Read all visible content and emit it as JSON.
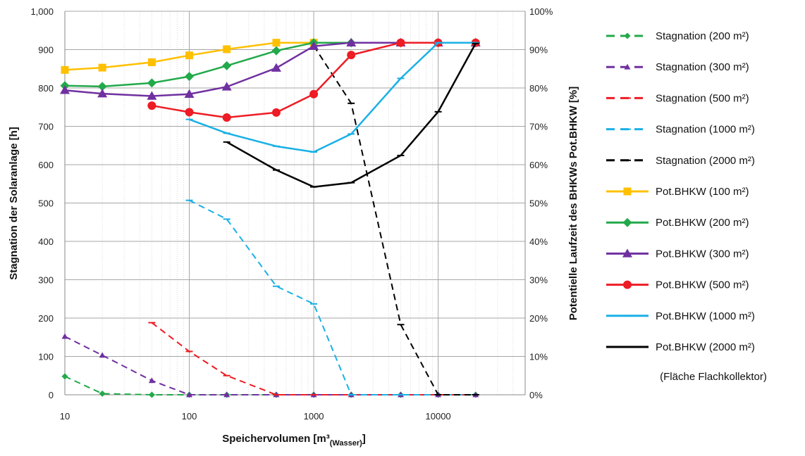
{
  "chart_data": {
    "type": "line",
    "xlabel": "Speichervolumen [m³",
    "xlabel_sub": "(Wasser)",
    "xlabel_close": "]",
    "ylabel_left": "Stagnation der Solaranlage [h]",
    "ylabel_right": "Potentielle Laufzeit des BHKWs Pot.BHKW  [%]",
    "x_scale": "log",
    "xlim": [
      10,
      50000
    ],
    "x_ticks": [
      10,
      100,
      1000,
      10000
    ],
    "x_tick_labels": [
      "10",
      "100",
      "1000",
      "10000"
    ],
    "y_left_lim": [
      0,
      1000
    ],
    "y_left_ticks": [
      0,
      100,
      200,
      300,
      400,
      500,
      600,
      700,
      800,
      900,
      1000
    ],
    "y_left_tick_labels": [
      "0",
      "100",
      "200",
      "300",
      "400",
      "500",
      "600",
      "700",
      "800",
      "900",
      "1,000"
    ],
    "y_right_lim": [
      0,
      100
    ],
    "y_right_ticks": [
      0,
      10,
      20,
      30,
      40,
      50,
      60,
      70,
      80,
      90,
      100
    ],
    "y_right_tick_labels": [
      "0%",
      "10%",
      "20%",
      "30%",
      "40%",
      "50%",
      "60%",
      "70%",
      "80%",
      "90%",
      "100%"
    ],
    "grid": true,
    "legend_position": "right",
    "legend_note": "(Fläche Flachkollektor)",
    "series": [
      {
        "name": "Stagnation (200 m²)",
        "axis": "left",
        "style": "dashed",
        "marker": "diamond",
        "color": "#22a94a",
        "x": [
          10,
          20,
          50,
          100,
          200,
          500,
          1000,
          2000,
          5000,
          10000,
          20000
        ],
        "y": [
          48,
          3,
          0,
          0,
          0,
          0,
          0,
          0,
          0,
          0,
          0
        ]
      },
      {
        "name": "Stagnation (300 m²)",
        "axis": "left",
        "style": "dashed",
        "marker": "triangle",
        "color": "#7030a0",
        "x": [
          10,
          20,
          50,
          100,
          200,
          500,
          1000,
          2000,
          5000,
          10000,
          20000
        ],
        "y": [
          152,
          103,
          37,
          0,
          0,
          0,
          0,
          0,
          0,
          0,
          0
        ]
      },
      {
        "name": "Stagnation (500 m²)",
        "axis": "left",
        "style": "dashed",
        "marker": "dash",
        "color": "#ee1c24",
        "x": [
          50,
          100,
          200,
          500,
          1000,
          2000,
          5000,
          10000,
          20000
        ],
        "y": [
          188,
          113,
          50,
          0,
          0,
          0,
          0,
          0,
          0
        ]
      },
      {
        "name": "Stagnation (1000 m²)",
        "axis": "left",
        "style": "dashed",
        "marker": "dash",
        "color": "#1ab0e6",
        "x": [
          100,
          200,
          500,
          1000,
          2000,
          5000,
          10000,
          20000
        ],
        "y": [
          507,
          458,
          283,
          237,
          0,
          0,
          0,
          0
        ]
      },
      {
        "name": "Stagnation (2000 m²)",
        "axis": "left",
        "style": "dashed",
        "marker": "dash",
        "color": "#000000",
        "x": [
          1000,
          2000,
          5000,
          10000,
          20000
        ],
        "y": [
          910,
          760,
          183,
          0,
          0
        ]
      },
      {
        "name": "Pot.BHKW (100 m²)",
        "axis": "right",
        "style": "solid",
        "marker": "square",
        "color": "#ffc000",
        "x": [
          10,
          20,
          50,
          100,
          200,
          500,
          1000
        ],
        "y": [
          84.7,
          85.3,
          86.7,
          88.5,
          90.1,
          91.8,
          91.8
        ]
      },
      {
        "name": "Pot.BHKW (200 m²)",
        "axis": "right",
        "style": "solid",
        "marker": "diamond",
        "color": "#22a94a",
        "x": [
          10,
          20,
          50,
          100,
          200,
          500,
          1000,
          2000,
          5000,
          10000,
          20000
        ],
        "y": [
          80.6,
          80.4,
          81.3,
          83.0,
          85.8,
          89.7,
          91.8,
          91.8,
          91.8,
          91.8,
          91.8
        ]
      },
      {
        "name": "Pot.BHKW (300 m²)",
        "axis": "right",
        "style": "solid",
        "marker": "triangle",
        "color": "#7030a0",
        "x": [
          10,
          20,
          50,
          100,
          200,
          500,
          1000,
          2000,
          5000,
          10000,
          20000
        ],
        "y": [
          79.4,
          78.5,
          77.9,
          78.4,
          80.3,
          85.2,
          90.9,
          91.8,
          91.8,
          91.8,
          91.8
        ]
      },
      {
        "name": "Pot.BHKW (500 m²)",
        "axis": "right",
        "style": "solid",
        "marker": "circle",
        "color": "#ee1c24",
        "x": [
          50,
          100,
          200,
          500,
          1000,
          2000,
          5000,
          10000,
          20000
        ],
        "y": [
          75.4,
          73.7,
          72.3,
          73.6,
          78.4,
          88.6,
          91.8,
          91.8,
          91.8
        ]
      },
      {
        "name": "Pot.BHKW (1000 m²)",
        "axis": "right",
        "style": "solid",
        "marker": "dash",
        "color": "#1ab0e6",
        "x": [
          100,
          200,
          500,
          1000,
          2000,
          5000,
          10000,
          20000
        ],
        "y": [
          71.8,
          68.2,
          64.8,
          63.3,
          68.0,
          82.5,
          91.8,
          91.8
        ]
      },
      {
        "name": "Pot.BHKW (2000 m²)",
        "axis": "right",
        "style": "solid",
        "marker": "dash",
        "color": "#000000",
        "x": [
          200,
          500,
          1000,
          2000,
          5000,
          10000,
          20000
        ],
        "y": [
          65.9,
          58.6,
          54.2,
          55.3,
          62.4,
          73.8,
          91.6
        ]
      }
    ]
  }
}
